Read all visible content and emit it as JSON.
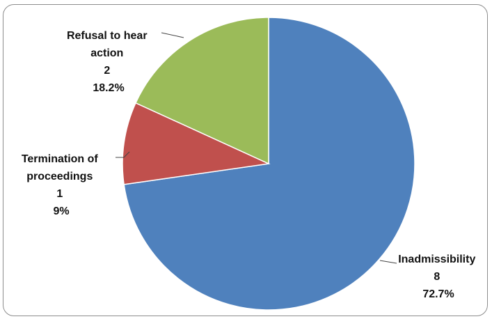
{
  "chart_data": {
    "type": "pie",
    "title": "",
    "slices": [
      {
        "category": "Inadmissibility",
        "value": 8,
        "percent_label": "72.7%",
        "color": "#4f81bd"
      },
      {
        "category": "Termination of proceedings",
        "value": 1,
        "percent_label": "9%",
        "color": "#c0504d"
      },
      {
        "category": "Refusal  to hear action",
        "value": 2,
        "percent_label": "18.2%",
        "color": "#9bbb59"
      }
    ],
    "data_labels": [
      {
        "lines": [
          "Inadmissibility",
          "8",
          "72.7%"
        ]
      },
      {
        "lines": [
          "Termination of",
          "proceedings",
          "1",
          "9%"
        ]
      },
      {
        "lines": [
          "Refusal  to hear",
          "action",
          "2",
          "18.2%"
        ]
      }
    ],
    "legend": "none"
  }
}
